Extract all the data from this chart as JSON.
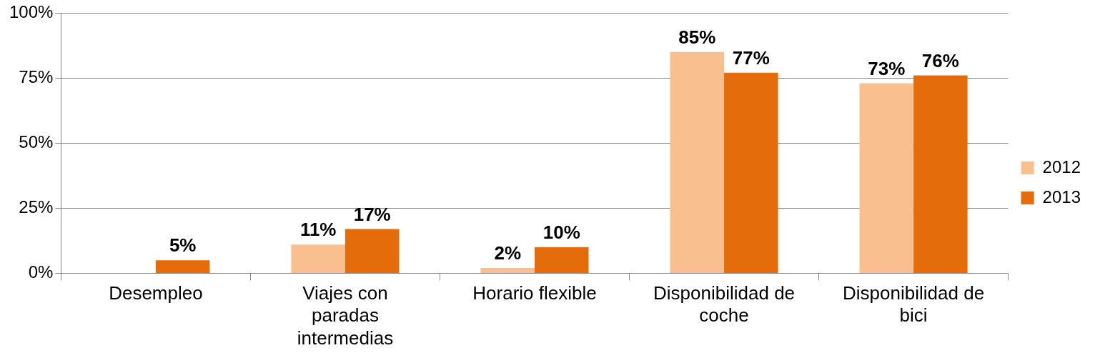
{
  "chart_data": {
    "type": "bar",
    "categories": [
      "Desempleo",
      "Viajes con paradas intermedias",
      "Horario flexible",
      "Disponibilidad de coche",
      "Disponibilidad de bici"
    ],
    "series": [
      {
        "name": "2012",
        "color": "#f9bf8f",
        "values": [
          null,
          11,
          2,
          85,
          73
        ],
        "value_labels": [
          null,
          "11%",
          "2%",
          "85%",
          "73%"
        ]
      },
      {
        "name": "2013",
        "color": "#e46c0a",
        "values": [
          5,
          17,
          10,
          77,
          76
        ],
        "value_labels": [
          "5%",
          "17%",
          "10%",
          "77%",
          "76%"
        ]
      }
    ],
    "ylim": [
      0,
      100
    ],
    "yticks": [
      {
        "value": 0,
        "label": "0%"
      },
      {
        "value": 25,
        "label": "25%"
      },
      {
        "value": 50,
        "label": "50%"
      },
      {
        "value": 75,
        "label": "75%"
      },
      {
        "value": 100,
        "label": "100%"
      }
    ],
    "grid": "y",
    "legend": "right"
  }
}
